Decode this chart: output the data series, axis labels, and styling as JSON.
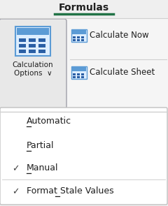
{
  "title": "Formulas",
  "title_color": "#1f1f1f",
  "title_underline_color": "#217346",
  "bg_color": "#efefef",
  "ribbon_bg": "#f0f0f0",
  "dropdown_bg": "#ffffff",
  "dropdown_border": "#c0c0c0",
  "highlight_bg": "#ffff99",
  "text_color": "#1f1f1f",
  "check_color": "#404040",
  "separator_color": "#d0d0d0",
  "btn_bg": "#e8e8e8",
  "btn_border": "#a0a0a8",
  "icon_bg": "#ddeeff",
  "icon_border": "#5b9bd5",
  "icon_top": "#5b9bd5",
  "icon_dots": "#2a5fa5",
  "menu_items": [
    {
      "label": "Automatic",
      "underline_idx": 0,
      "checked": false,
      "highlighted": false
    },
    {
      "label": "Partial",
      "underline_idx": 0,
      "checked": false,
      "highlighted": false
    },
    {
      "label": "Manual",
      "underline_idx": 0,
      "checked": true,
      "highlighted": true
    },
    {
      "label": "Format Stale Values",
      "underline_idx": 7,
      "checked": true,
      "highlighted": true
    }
  ],
  "calc_now_label": "Calculate Now",
  "calc_sheet_label": "Calculate Sheet",
  "figw": 2.4,
  "figh": 2.95,
  "dpi": 100
}
